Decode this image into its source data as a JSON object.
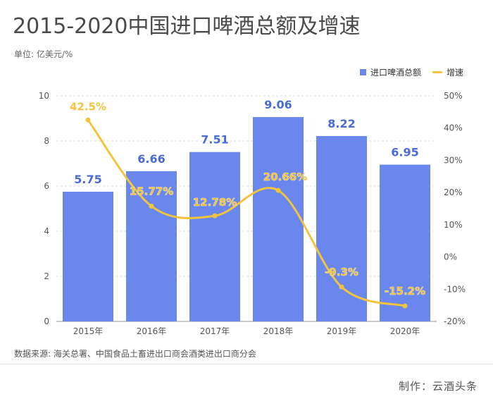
{
  "header": {
    "title": "2015-2020中国进口啤酒总额及增速",
    "unit": "单位: 亿美元/%"
  },
  "legend": {
    "bar_label": "进口啤酒总额",
    "line_label": "增速"
  },
  "colors": {
    "bar": "#6a87ee",
    "bar_label": "#4a6ad8",
    "line": "#f2c43d",
    "line_label": "#f2c43d",
    "grid": "#dcdcdc",
    "axis_text": "#555555"
  },
  "chart_data": {
    "type": "bar",
    "title": "2015-2020中国进口啤酒总额及增速",
    "categories": [
      "2015年",
      "2016年",
      "2017年",
      "2018年",
      "2019年",
      "2020年"
    ],
    "series": [
      {
        "name": "进口啤酒总额",
        "kind": "bar",
        "axis": "left",
        "values": [
          5.75,
          6.66,
          7.51,
          9.06,
          8.22,
          6.95
        ],
        "labels": [
          "5.75",
          "6.66",
          "7.51",
          "9.06",
          "8.22",
          "6.95"
        ]
      },
      {
        "name": "增速",
        "kind": "line",
        "axis": "right",
        "smooth": true,
        "values": [
          42.5,
          15.77,
          12.78,
          20.66,
          -9.3,
          -15.2
        ],
        "labels": [
          "42.5%",
          "15.77%",
          "12.78%",
          "20.66%",
          "-9.3%",
          "-15.2%"
        ]
      }
    ],
    "left_axis": {
      "min": 0,
      "max": 10,
      "ticks": [
        0,
        2,
        4,
        6,
        8,
        10
      ],
      "tick_labels": [
        "0",
        "2",
        "4",
        "6",
        "8",
        "10"
      ]
    },
    "right_axis": {
      "min": -20,
      "max": 50,
      "ticks": [
        -20,
        -10,
        0,
        10,
        20,
        30,
        40,
        50
      ],
      "tick_labels": [
        "-20%",
        "-10%",
        "0%",
        "10%",
        "20%",
        "30%",
        "40%",
        "50%"
      ]
    },
    "grid": true,
    "legend_position": "top-right"
  },
  "footer": {
    "source": "数据来源: 海关总署、中国食品土畜进出口商会酒类进出口商分会",
    "credit": "制作：云酒头条"
  }
}
